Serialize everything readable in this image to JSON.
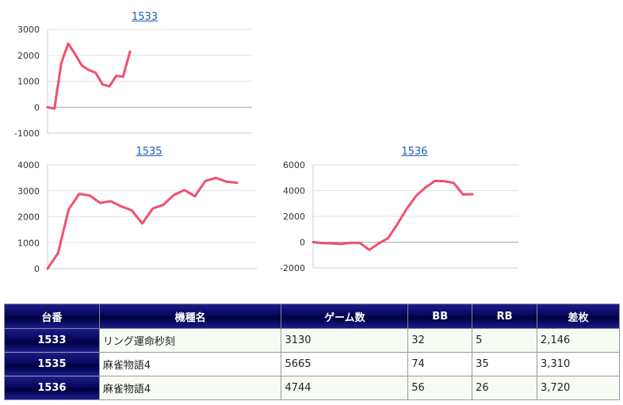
{
  "chart_data": [
    {
      "type": "line",
      "title": "1533",
      "ylim": [
        -1000,
        3000
      ],
      "yticks": [
        3000,
        2000,
        1000,
        0,
        -1000
      ],
      "color": "#f0506e",
      "values": [
        0,
        -60,
        1700,
        2450,
        2050,
        1600,
        1430,
        1330,
        880,
        800,
        1210,
        1170,
        2146
      ]
    },
    {
      "type": "line",
      "title": "1535",
      "ylim": [
        0,
        4000
      ],
      "yticks": [
        4000,
        3000,
        2000,
        1000,
        0
      ],
      "color": "#f0506e",
      "values": [
        0,
        600,
        2280,
        2880,
        2820,
        2530,
        2600,
        2400,
        2250,
        1740,
        2320,
        2460,
        2840,
        3030,
        2790,
        3380,
        3500,
        3350,
        3310
      ]
    },
    {
      "type": "line",
      "title": "1536",
      "ylim": [
        -2000,
        6000
      ],
      "yticks": [
        6000,
        4000,
        2000,
        0,
        -2000
      ],
      "color": "#f0506e",
      "values": [
        0,
        -80,
        -100,
        -150,
        -50,
        -60,
        -600,
        -100,
        300,
        1400,
        2600,
        3600,
        4250,
        4750,
        4730,
        4600,
        3700,
        3720
      ]
    }
  ],
  "table": {
    "headers": [
      "台番",
      "機種名",
      "ゲーム数",
      "BB",
      "RB",
      "差枚"
    ],
    "rows": [
      [
        "1533",
        "リング運命秒刻",
        "3130",
        "32",
        "5",
        "2,146"
      ],
      [
        "1535",
        "麻雀物語4",
        "5665",
        "74",
        "35",
        "3,310"
      ],
      [
        "1536",
        "麻雀物語4",
        "4744",
        "56",
        "26",
        "3,720"
      ]
    ]
  }
}
